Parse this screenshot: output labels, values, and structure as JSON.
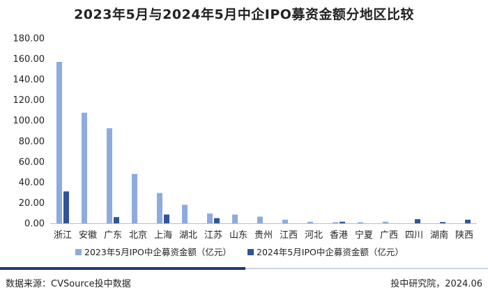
{
  "title": "2023年5月与2024年5月中企IPO募资金额分地区比较",
  "footer": {
    "source": "数据来源：CVSource投中数据",
    "credit": "投中研究院，2024.06"
  },
  "colors": {
    "series_2023": "#8faadc",
    "series_2024": "#2f5597",
    "axis": "#bfbfbf",
    "rule_dark": "#1f3a6e",
    "rule_light": "#c9d3e6"
  },
  "chart_data": {
    "type": "bar",
    "title": "2023年5月与2024年5月中企IPO募资金额分地区比较",
    "categories": [
      "浙江",
      "安徽",
      "广东",
      "北京",
      "上海",
      "湖北",
      "江苏",
      "山东",
      "贵州",
      "江西",
      "河北",
      "香港",
      "宁夏",
      "广西",
      "四川",
      "湖南",
      "陕西"
    ],
    "series": [
      {
        "name": "2023年5月IPO中企募资金额（亿元）",
        "values": [
          157,
          107.5,
          92.5,
          48,
          29.5,
          18,
          9.5,
          8.5,
          6.5,
          3.5,
          1.5,
          1.0,
          1.0,
          1.5,
          0,
          0,
          0
        ]
      },
      {
        "name": "2024年5月IPO中企募资金额（亿元）",
        "values": [
          31,
          0,
          6,
          0,
          8.5,
          0,
          5,
          0,
          0,
          0,
          0,
          1.5,
          0,
          0,
          4,
          1.2,
          3.5
        ]
      }
    ],
    "ylim": [
      0,
      180
    ],
    "yticks": [
      "0.00",
      "20.00",
      "40.00",
      "60.00",
      "80.00",
      "100.00",
      "120.00",
      "140.00",
      "160.00",
      "180.00"
    ],
    "legend_position": "bottom",
    "grid": false
  }
}
